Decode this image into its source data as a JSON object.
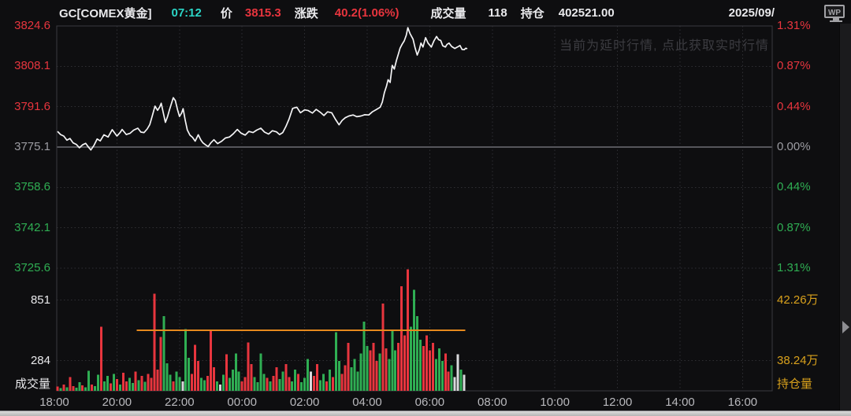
{
  "header": {
    "symbol": "GC[COMEX黄金]",
    "time": "07:12",
    "price_label": "价",
    "price": "3815.3",
    "change_label": "涨跌",
    "change": "40.2(1.06%)",
    "volume_label": "成交量",
    "volume": "118",
    "oi_label": "持仓",
    "oi": "402521.00",
    "date": "2025/09/",
    "wp_icon_text": "WP"
  },
  "watermark": "当前为延时行情, 点此获取实时行情",
  "colors": {
    "red": "#e8353e",
    "green": "#2fae53",
    "gray": "#9c9ca2",
    "white": "#e9e9ec",
    "neutral_bar": "#d9d9dc",
    "teal": "#2bd5c6",
    "yellow": "#d9a11c",
    "orange": "#e5891d",
    "line": "#f4f4f6",
    "grid": "#2f2f33",
    "zero_line": "#56565b",
    "border": "#3a3a3f"
  },
  "chart_data": {
    "type": "line",
    "subtype": "intraday price line with volume bars and open-interest line",
    "symbol": "GC[COMEX黄金]",
    "last_price": 3815.3,
    "price_axis": {
      "max": 3824.6,
      "min": 3725.6,
      "zero": 3775.1,
      "ticks": [
        "3824.6",
        "3808.1",
        "3791.6",
        "3775.1",
        "3758.6",
        "3742.1",
        "3725.6"
      ],
      "tick_values": [
        3824.6,
        3808.1,
        3791.6,
        3775.1,
        3758.6,
        3742.1,
        3725.6
      ],
      "tick_colors": [
        "red",
        "red",
        "red",
        "gray",
        "green",
        "green",
        "green"
      ]
    },
    "pct_axis": {
      "ticks": [
        "1.31%",
        "0.87%",
        "0.44%",
        "0.00%",
        "0.44%",
        "0.87%",
        "1.31%"
      ],
      "tick_colors": [
        "red",
        "red",
        "red",
        "gray",
        "green",
        "green",
        "green"
      ]
    },
    "volume_axis": {
      "label": "成交量",
      "ticks": [
        "851",
        "284"
      ],
      "tick_values": [
        851,
        284
      ]
    },
    "oi_axis": {
      "label": "持仓量",
      "ticks": [
        "42.26万",
        "38.24万"
      ],
      "tick_values": [
        422600,
        382400
      ],
      "oi_value": 402521
    },
    "time_axis": {
      "ticks": [
        "18:00",
        "20:00",
        "22:00",
        "00:00",
        "02:00",
        "04:00",
        "06:00",
        "08:00",
        "10:00",
        "12:00",
        "14:00",
        "16:00"
      ]
    },
    "oi_line": {
      "t_start": 158,
      "t_end": 788
    },
    "price_series": [
      [
        6,
        3781.5
      ],
      [
        12,
        3780.2
      ],
      [
        18,
        3779.6
      ],
      [
        24,
        3777.9
      ],
      [
        30,
        3778.6
      ],
      [
        36,
        3776.8
      ],
      [
        42,
        3776.2
      ],
      [
        48,
        3774.8
      ],
      [
        54,
        3776.0
      ],
      [
        60,
        3776.6
      ],
      [
        66,
        3774.9
      ],
      [
        70,
        3773.9
      ],
      [
        76,
        3775.8
      ],
      [
        82,
        3778.4
      ],
      [
        88,
        3777.6
      ],
      [
        95,
        3780.1
      ],
      [
        103,
        3779.2
      ],
      [
        111,
        3782.2
      ],
      [
        120,
        3779.6
      ],
      [
        126,
        3781.0
      ],
      [
        130,
        3782.3
      ],
      [
        138,
        3780.2
      ],
      [
        145,
        3780.7
      ],
      [
        152,
        3782.0
      ],
      [
        160,
        3782.8
      ],
      [
        166,
        3781.2
      ],
      [
        172,
        3781.0
      ],
      [
        178,
        3782.5
      ],
      [
        183,
        3784.3
      ],
      [
        188,
        3788.0
      ],
      [
        193,
        3791.8
      ],
      [
        198,
        3790.1
      ],
      [
        202,
        3791.5
      ],
      [
        205,
        3793.0
      ],
      [
        209,
        3789.0
      ],
      [
        213,
        3785.2
      ],
      [
        217,
        3787.5
      ],
      [
        220,
        3789.8
      ],
      [
        224,
        3792.5
      ],
      [
        228,
        3795.3
      ],
      [
        232,
        3794.1
      ],
      [
        236,
        3790.5
      ],
      [
        240,
        3787.6
      ],
      [
        244,
        3789.0
      ],
      [
        247,
        3790.8
      ],
      [
        251,
        3786.0
      ],
      [
        255,
        3782.1
      ],
      [
        260,
        3780.0
      ],
      [
        265,
        3779.1
      ],
      [
        270,
        3777.5
      ],
      [
        276,
        3780.1
      ],
      [
        281,
        3778.0
      ],
      [
        285,
        3776.8
      ],
      [
        290,
        3776.0
      ],
      [
        295,
        3775.3
      ],
      [
        300,
        3776.8
      ],
      [
        306,
        3778.1
      ],
      [
        313,
        3776.5
      ],
      [
        321,
        3777.5
      ],
      [
        328,
        3778.8
      ],
      [
        336,
        3779.2
      ],
      [
        343,
        3780.5
      ],
      [
        351,
        3782.3
      ],
      [
        358,
        3780.8
      ],
      [
        366,
        3780.0
      ],
      [
        373,
        3781.5
      ],
      [
        381,
        3781.0
      ],
      [
        388,
        3782.0
      ],
      [
        396,
        3782.8
      ],
      [
        403,
        3781.2
      ],
      [
        411,
        3780.4
      ],
      [
        418,
        3781.8
      ],
      [
        426,
        3781.3
      ],
      [
        432,
        3780.2
      ],
      [
        438,
        3781.0
      ],
      [
        444,
        3783.5
      ],
      [
        450,
        3786.5
      ],
      [
        457,
        3790.9
      ],
      [
        465,
        3791.4
      ],
      [
        472,
        3789.1
      ],
      [
        480,
        3790.3
      ],
      [
        487,
        3790.0
      ],
      [
        495,
        3789.0
      ],
      [
        502,
        3790.5
      ],
      [
        510,
        3789.3
      ],
      [
        517,
        3788.0
      ],
      [
        524,
        3789.5
      ],
      [
        532,
        3789.1
      ],
      [
        539,
        3786.5
      ],
      [
        546,
        3784.2
      ],
      [
        552,
        3786.0
      ],
      [
        558,
        3787.1
      ],
      [
        565,
        3787.8
      ],
      [
        573,
        3788.2
      ],
      [
        580,
        3787.5
      ],
      [
        588,
        3787.8
      ],
      [
        595,
        3788.3
      ],
      [
        603,
        3788.2
      ],
      [
        610,
        3789.5
      ],
      [
        618,
        3790.5
      ],
      [
        625,
        3791.4
      ],
      [
        629,
        3793.5
      ],
      [
        633,
        3797.3
      ],
      [
        637,
        3800.0
      ],
      [
        640,
        3802.6
      ],
      [
        644,
        3801.5
      ],
      [
        648,
        3808.5
      ],
      [
        652,
        3807.0
      ],
      [
        656,
        3810.5
      ],
      [
        660,
        3813.3
      ],
      [
        663,
        3815.5
      ],
      [
        667,
        3817.1
      ],
      [
        671,
        3818.5
      ],
      [
        675,
        3820.8
      ],
      [
        678,
        3823.9
      ],
      [
        682,
        3821.5
      ],
      [
        688,
        3819.2
      ],
      [
        692,
        3815.5
      ],
      [
        696,
        3812.7
      ],
      [
        700,
        3815.0
      ],
      [
        703,
        3817.6
      ],
      [
        707,
        3816.0
      ],
      [
        712,
        3819.8
      ],
      [
        717,
        3817.5
      ],
      [
        723,
        3816.0
      ],
      [
        728,
        3818.5
      ],
      [
        733,
        3820.3
      ],
      [
        737,
        3819.0
      ],
      [
        741,
        3818.7
      ],
      [
        745,
        3816.5
      ],
      [
        750,
        3816.0
      ],
      [
        753,
        3817.0
      ],
      [
        757,
        3817.6
      ],
      [
        762,
        3816.2
      ],
      [
        768,
        3815.4
      ],
      [
        773,
        3816.0
      ],
      [
        778,
        3816.6
      ],
      [
        782,
        3815.0
      ],
      [
        786,
        3814.9
      ],
      [
        789,
        3815.5
      ],
      [
        792,
        3815.3
      ]
    ],
    "volume_bars": [
      [
        6,
        40,
        "r"
      ],
      [
        12,
        25,
        "g"
      ],
      [
        18,
        60,
        "r"
      ],
      [
        24,
        35,
        "g"
      ],
      [
        30,
        130,
        "r"
      ],
      [
        36,
        45,
        "r"
      ],
      [
        42,
        30,
        "g"
      ],
      [
        48,
        80,
        "g"
      ],
      [
        54,
        50,
        "r"
      ],
      [
        60,
        35,
        "g"
      ],
      [
        66,
        190,
        "g"
      ],
      [
        72,
        60,
        "r"
      ],
      [
        78,
        45,
        "g"
      ],
      [
        84,
        150,
        "g"
      ],
      [
        90,
        600,
        "r"
      ],
      [
        96,
        90,
        "g"
      ],
      [
        102,
        140,
        "g"
      ],
      [
        108,
        70,
        "r"
      ],
      [
        114,
        160,
        "g"
      ],
      [
        120,
        110,
        "r"
      ],
      [
        126,
        60,
        "g"
      ],
      [
        132,
        170,
        "r"
      ],
      [
        138,
        90,
        "r"
      ],
      [
        144,
        120,
        "g"
      ],
      [
        150,
        75,
        "g"
      ],
      [
        156,
        180,
        "r"
      ],
      [
        162,
        100,
        "g"
      ],
      [
        168,
        140,
        "r"
      ],
      [
        174,
        85,
        "g"
      ],
      [
        180,
        160,
        "r"
      ],
      [
        186,
        120,
        "r"
      ],
      [
        192,
        910,
        "r"
      ],
      [
        198,
        200,
        "r"
      ],
      [
        204,
        505,
        "r"
      ],
      [
        210,
        700,
        "g"
      ],
      [
        216,
        260,
        "g"
      ],
      [
        222,
        150,
        "g"
      ],
      [
        228,
        90,
        "r"
      ],
      [
        234,
        180,
        "g"
      ],
      [
        240,
        130,
        "g"
      ],
      [
        246,
        90,
        "w"
      ],
      [
        252,
        580,
        "g"
      ],
      [
        258,
        310,
        "g"
      ],
      [
        264,
        160,
        "r"
      ],
      [
        270,
        430,
        "r"
      ],
      [
        276,
        280,
        "r"
      ],
      [
        282,
        120,
        "g"
      ],
      [
        288,
        100,
        "g"
      ],
      [
        294,
        140,
        "r"
      ],
      [
        300,
        565,
        "r"
      ],
      [
        306,
        220,
        "r"
      ],
      [
        312,
        90,
        "g"
      ],
      [
        318,
        60,
        "w"
      ],
      [
        324,
        150,
        "g"
      ],
      [
        330,
        345,
        "r"
      ],
      [
        336,
        120,
        "g"
      ],
      [
        342,
        200,
        "g"
      ],
      [
        348,
        350,
        "g"
      ],
      [
        354,
        180,
        "g"
      ],
      [
        360,
        90,
        "r"
      ],
      [
        366,
        130,
        "r"
      ],
      [
        372,
        455,
        "r"
      ],
      [
        378,
        250,
        "r"
      ],
      [
        384,
        130,
        "g"
      ],
      [
        390,
        80,
        "g"
      ],
      [
        396,
        350,
        "g"
      ],
      [
        402,
        160,
        "g"
      ],
      [
        408,
        120,
        "r"
      ],
      [
        414,
        90,
        "g"
      ],
      [
        420,
        140,
        "r"
      ],
      [
        426,
        220,
        "r"
      ],
      [
        432,
        110,
        "g"
      ],
      [
        438,
        180,
        "g"
      ],
      [
        444,
        250,
        "r"
      ],
      [
        450,
        130,
        "r"
      ],
      [
        456,
        90,
        "g"
      ],
      [
        462,
        200,
        "g"
      ],
      [
        468,
        160,
        "r"
      ],
      [
        474,
        80,
        "g"
      ],
      [
        480,
        120,
        "g"
      ],
      [
        486,
        300,
        "g"
      ],
      [
        492,
        180,
        "w"
      ],
      [
        498,
        140,
        "r"
      ],
      [
        504,
        250,
        "r"
      ],
      [
        510,
        100,
        "g"
      ],
      [
        516,
        160,
        "g"
      ],
      [
        522,
        90,
        "r"
      ],
      [
        528,
        200,
        "g"
      ],
      [
        534,
        130,
        "r"
      ],
      [
        540,
        550,
        "g"
      ],
      [
        546,
        280,
        "g"
      ],
      [
        552,
        160,
        "r"
      ],
      [
        558,
        240,
        "r"
      ],
      [
        564,
        450,
        "r"
      ],
      [
        570,
        220,
        "g"
      ],
      [
        576,
        300,
        "g"
      ],
      [
        582,
        180,
        "g"
      ],
      [
        588,
        350,
        "g"
      ],
      [
        594,
        650,
        "g"
      ],
      [
        600,
        420,
        "g"
      ],
      [
        606,
        380,
        "r"
      ],
      [
        612,
        450,
        "r"
      ],
      [
        618,
        280,
        "r"
      ],
      [
        624,
        350,
        "g"
      ],
      [
        630,
        820,
        "r"
      ],
      [
        636,
        400,
        "r"
      ],
      [
        642,
        300,
        "g"
      ],
      [
        648,
        560,
        "g"
      ],
      [
        654,
        380,
        "g"
      ],
      [
        660,
        450,
        "r"
      ],
      [
        666,
        980,
        "r"
      ],
      [
        672,
        520,
        "r"
      ],
      [
        678,
        1140,
        "r"
      ],
      [
        684,
        600,
        "g"
      ],
      [
        690,
        950,
        "g"
      ],
      [
        696,
        700,
        "g"
      ],
      [
        702,
        480,
        "g"
      ],
      [
        708,
        420,
        "r"
      ],
      [
        714,
        520,
        "r"
      ],
      [
        720,
        380,
        "r"
      ],
      [
        726,
        450,
        "r"
      ],
      [
        732,
        300,
        "g"
      ],
      [
        738,
        400,
        "g"
      ],
      [
        744,
        280,
        "g"
      ],
      [
        750,
        350,
        "r"
      ],
      [
        756,
        180,
        "r"
      ],
      [
        762,
        240,
        "g"
      ],
      [
        768,
        130,
        "w"
      ],
      [
        774,
        345,
        "w"
      ],
      [
        780,
        200,
        "g"
      ],
      [
        786,
        150,
        "w"
      ]
    ]
  }
}
